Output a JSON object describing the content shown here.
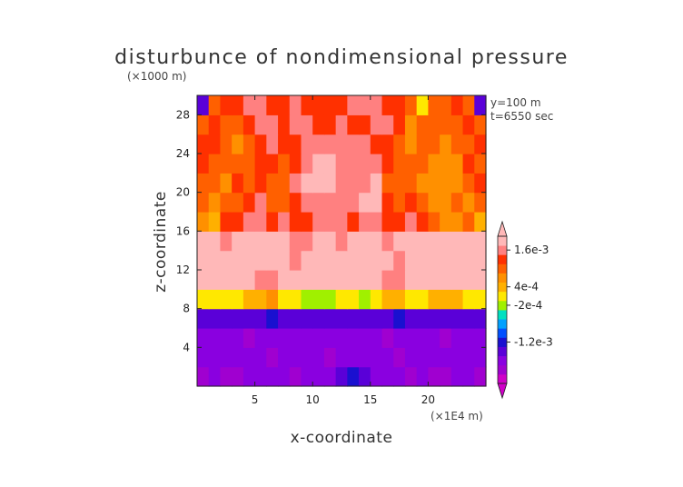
{
  "chart_data": {
    "type": "heatmap",
    "title": "disturbunce of nondimensional pressure",
    "z_unit_label": "(×1000 m)",
    "x_unit_label": "(×1E4 m)",
    "xlabel": "x-coordinate",
    "ylabel": "z-coordinate",
    "annotations": [
      "y=100 m",
      "t=6550 sec"
    ],
    "x_range": [
      0,
      25
    ],
    "y_range": [
      0,
      30
    ],
    "x_ticks": [
      {
        "value": 5,
        "label": "5"
      },
      {
        "value": 10,
        "label": "10"
      },
      {
        "value": 15,
        "label": "15"
      },
      {
        "value": 20,
        "label": "20"
      }
    ],
    "y_ticks": [
      {
        "value": 4,
        "label": "4"
      },
      {
        "value": 8,
        "label": "8"
      },
      {
        "value": 12,
        "label": "12"
      },
      {
        "value": 16,
        "label": "16"
      },
      {
        "value": 20,
        "label": "20"
      },
      {
        "value": 24,
        "label": "24"
      },
      {
        "value": 28,
        "label": "28"
      }
    ],
    "colorbar": {
      "colors": [
        "#d000c8",
        "#a000d0",
        "#8a00e0",
        "#5a00d8",
        "#1a10d0",
        "#0050ff",
        "#00a0ff",
        "#00e0c0",
        "#a0f000",
        "#ffe800",
        "#ffb000",
        "#ff9000",
        "#ff6000",
        "#ff3000",
        "#ff8080",
        "#ffb8b8"
      ],
      "labels": [
        {
          "level": 14,
          "text": "1.6e-3"
        },
        {
          "level": 10,
          "text": "4e-4"
        },
        {
          "level": 8,
          "text": "-2e-4"
        },
        {
          "level": 4,
          "text": "-1.2e-3"
        }
      ]
    },
    "field_description_levels": "level index 0..15 of colorbar; grid is coarse estimate of depicted pattern",
    "x": [
      0.5,
      1.5,
      2.5,
      3.5,
      4.5,
      5.5,
      6.5,
      7.5,
      8.5,
      9.5,
      10.5,
      11.5,
      12.5,
      13.5,
      14.5,
      15.5,
      16.5,
      17.5,
      18.5,
      19.5,
      20.5,
      21.5,
      22.5,
      23.5,
      24.5
    ],
    "y": [
      1,
      3,
      5,
      7,
      9,
      11,
      13,
      15,
      17,
      19,
      21,
      23,
      25,
      27,
      29
    ],
    "z": [
      [
        1,
        2,
        1,
        1,
        2,
        2,
        2,
        2,
        1,
        2,
        2,
        2,
        3,
        4,
        3,
        2,
        2,
        2,
        1,
        2,
        1,
        1,
        2,
        2,
        1
      ],
      [
        2,
        2,
        2,
        2,
        2,
        2,
        1,
        2,
        2,
        2,
        2,
        1,
        2,
        2,
        2,
        2,
        2,
        1,
        2,
        2,
        2,
        2,
        2,
        2,
        2
      ],
      [
        2,
        2,
        2,
        2,
        1,
        2,
        2,
        2,
        2,
        2,
        2,
        2,
        2,
        2,
        2,
        2,
        1,
        2,
        2,
        2,
        2,
        1,
        2,
        2,
        2
      ],
      [
        3,
        3,
        3,
        3,
        3,
        3,
        4,
        3,
        3,
        3,
        3,
        3,
        3,
        3,
        3,
        3,
        3,
        4,
        3,
        3,
        3,
        3,
        3,
        3,
        3
      ],
      [
        9,
        9,
        9,
        9,
        10,
        10,
        11,
        9,
        9,
        8,
        8,
        8,
        9,
        9,
        8,
        9,
        10,
        10,
        9,
        9,
        10,
        10,
        10,
        9,
        9
      ],
      [
        15,
        15,
        15,
        15,
        15,
        14,
        14,
        15,
        15,
        15,
        15,
        15,
        15,
        15,
        15,
        15,
        14,
        14,
        15,
        15,
        15,
        15,
        15,
        15,
        15
      ],
      [
        15,
        15,
        15,
        15,
        15,
        15,
        15,
        15,
        14,
        15,
        15,
        15,
        15,
        15,
        15,
        15,
        15,
        14,
        15,
        15,
        15,
        15,
        15,
        15,
        15
      ],
      [
        15,
        15,
        14,
        15,
        15,
        15,
        15,
        15,
        14,
        14,
        15,
        15,
        14,
        15,
        15,
        15,
        14,
        15,
        15,
        15,
        15,
        15,
        15,
        15,
        15
      ],
      [
        11,
        10,
        13,
        13,
        14,
        14,
        13,
        14,
        13,
        13,
        14,
        14,
        14,
        13,
        14,
        14,
        13,
        13,
        14,
        13,
        12,
        11,
        11,
        12,
        10
      ],
      [
        12,
        11,
        12,
        12,
        13,
        14,
        12,
        12,
        13,
        14,
        14,
        14,
        14,
        14,
        15,
        15,
        13,
        12,
        13,
        12,
        11,
        11,
        12,
        11,
        12
      ],
      [
        12,
        12,
        11,
        13,
        12,
        13,
        12,
        12,
        14,
        15,
        15,
        15,
        14,
        14,
        14,
        15,
        12,
        12,
        12,
        11,
        11,
        11,
        11,
        12,
        13
      ],
      [
        13,
        12,
        12,
        12,
        12,
        13,
        13,
        12,
        13,
        14,
        15,
        15,
        14,
        14,
        14,
        14,
        13,
        12,
        12,
        12,
        11,
        11,
        11,
        13,
        12
      ],
      [
        13,
        13,
        12,
        11,
        12,
        13,
        14,
        13,
        13,
        14,
        14,
        14,
        14,
        14,
        14,
        13,
        13,
        12,
        11,
        12,
        12,
        11,
        12,
        12,
        13
      ],
      [
        12,
        13,
        12,
        12,
        13,
        14,
        14,
        13,
        14,
        14,
        13,
        13,
        14,
        13,
        13,
        14,
        14,
        13,
        11,
        12,
        12,
        12,
        12,
        13,
        12
      ],
      [
        3,
        12,
        13,
        13,
        14,
        14,
        13,
        13,
        14,
        13,
        13,
        13,
        13,
        14,
        14,
        14,
        13,
        13,
        12,
        9,
        12,
        12,
        13,
        12,
        3
      ]
    ]
  }
}
